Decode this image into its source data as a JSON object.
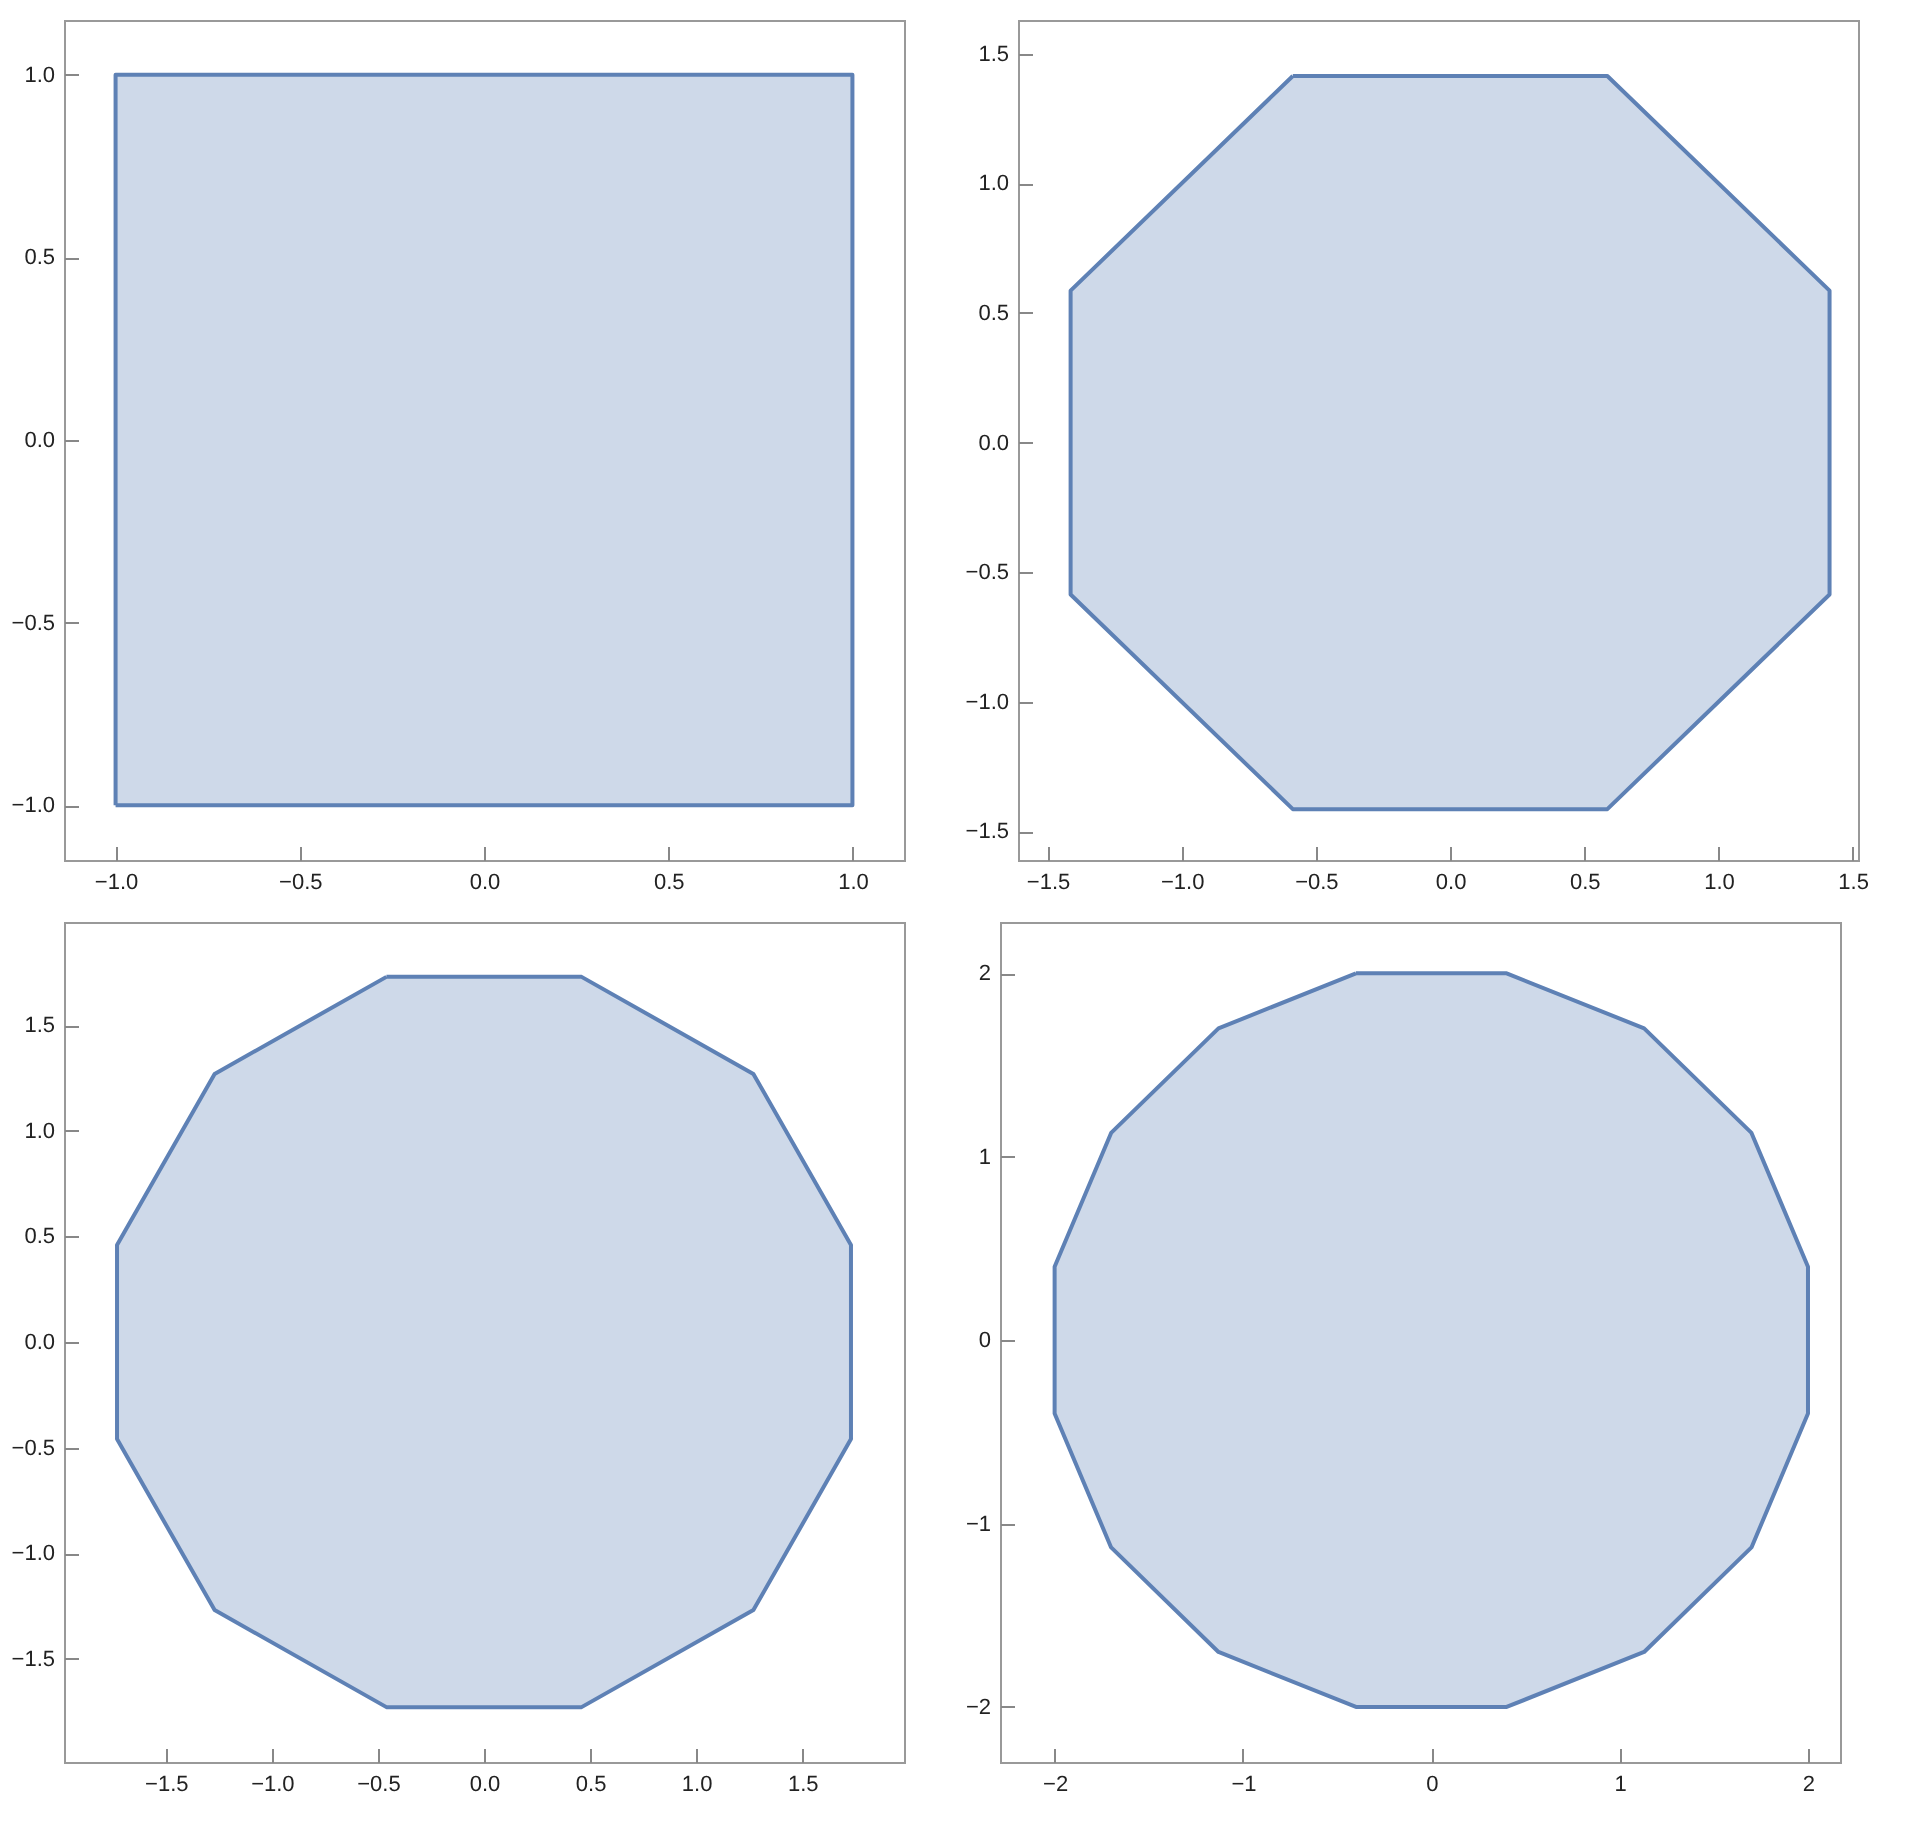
{
  "chart_data": [
    {
      "type": "area",
      "xlim": [
        -1.14,
        1.14
      ],
      "ylim": [
        -1.15,
        1.15
      ],
      "xticks": [
        {
          "value": -1,
          "label": "−1.0"
        },
        {
          "value": -0.5,
          "label": "−0.5"
        },
        {
          "value": 0,
          "label": "0.0"
        },
        {
          "value": 0.5,
          "label": "0.5"
        },
        {
          "value": 1,
          "label": "1.0"
        }
      ],
      "yticks": [
        {
          "value": -1,
          "label": "−1.0"
        },
        {
          "value": -0.5,
          "label": "−0.5"
        },
        {
          "value": 0,
          "label": "0.0"
        },
        {
          "value": 0.5,
          "label": "0.5"
        },
        {
          "value": 1,
          "label": "1.0"
        }
      ],
      "series": [
        {
          "color": "#5e81b5",
          "x": [
            -1,
            1,
            1,
            -1,
            -1
          ],
          "values": [
            -1,
            -1,
            1,
            1,
            -1
          ]
        }
      ]
    },
    {
      "type": "area",
      "xlim": [
        -1.61,
        1.52
      ],
      "ylim": [
        -1.61,
        1.63
      ],
      "xticks": [
        {
          "value": -1.5,
          "label": "−1.5"
        },
        {
          "value": -1,
          "label": "−1.0"
        },
        {
          "value": -0.5,
          "label": "−0.5"
        },
        {
          "value": 0,
          "label": "0.0"
        },
        {
          "value": 0.5,
          "label": "0.5"
        },
        {
          "value": 1,
          "label": "1.0"
        },
        {
          "value": 1.5,
          "label": "1.5"
        }
      ],
      "yticks": [
        {
          "value": -1.5,
          "label": "−1.5"
        },
        {
          "value": -1,
          "label": "−1.0"
        },
        {
          "value": -0.5,
          "label": "−0.5"
        },
        {
          "value": 0,
          "label": "0.0"
        },
        {
          "value": 0.5,
          "label": "0.5"
        },
        {
          "value": 1,
          "label": "1.0"
        },
        {
          "value": 1.5,
          "label": "1.5"
        }
      ],
      "series": [
        {
          "color": "#5e81b5",
          "x": [
            -0.586,
            0.586,
            1.414,
            1.414,
            0.586,
            -0.586,
            -1.414,
            -1.414,
            -0.586
          ],
          "values": [
            1.414,
            1.414,
            0.586,
            -0.586,
            -1.414,
            -1.414,
            -0.586,
            0.586,
            1.414
          ]
        }
      ]
    },
    {
      "type": "area",
      "xlim": [
        -1.98,
        1.98
      ],
      "ylim": [
        -1.99,
        1.99
      ],
      "xticks": [
        {
          "value": -1.5,
          "label": "−1.5"
        },
        {
          "value": -1,
          "label": "−1.0"
        },
        {
          "value": -0.5,
          "label": "−0.5"
        },
        {
          "value": 0,
          "label": "0.0"
        },
        {
          "value": 0.5,
          "label": "0.5"
        },
        {
          "value": 1,
          "label": "1.0"
        },
        {
          "value": 1.5,
          "label": "1.5"
        }
      ],
      "yticks": [
        {
          "value": -1.5,
          "label": "−1.5"
        },
        {
          "value": -1,
          "label": "−1.0"
        },
        {
          "value": -0.5,
          "label": "−0.5"
        },
        {
          "value": 0,
          "label": "0.0"
        },
        {
          "value": 0.5,
          "label": "0.5"
        },
        {
          "value": 1,
          "label": "1.0"
        },
        {
          "value": 1.5,
          "label": "1.5"
        }
      ],
      "series": [
        {
          "color": "#5e81b5",
          "x": [
            -0.46,
            0.46,
            1.27,
            1.73,
            1.73,
            1.27,
            0.46,
            -0.46,
            -1.27,
            -1.73,
            -1.73,
            -1.27,
            -0.46
          ],
          "values": [
            1.73,
            1.73,
            1.27,
            0.46,
            -0.46,
            -1.27,
            -1.73,
            -1.73,
            -1.27,
            -0.46,
            0.46,
            1.27,
            1.73
          ]
        }
      ]
    },
    {
      "type": "area",
      "xlim": [
        -2.29,
        2.17
      ],
      "ylim": [
        -2.3,
        2.28
      ],
      "xticks": [
        {
          "value": -2,
          "label": "−2"
        },
        {
          "value": -1,
          "label": "−1"
        },
        0,
        1,
        2
      ],
      "yticks": [
        {
          "value": -2,
          "label": "−2"
        },
        {
          "value": -1,
          "label": "−1"
        },
        0,
        1,
        2
      ],
      "series": [
        {
          "color": "#5e81b5",
          "x": [
            -0.4,
            0.4,
            1.13,
            1.7,
            2,
            2,
            1.7,
            1.13,
            0.4,
            -0.4,
            -1.13,
            -1.7,
            -2,
            -2,
            -1.7,
            -1.13,
            -0.4
          ],
          "values": [
            2,
            2,
            1.7,
            1.13,
            0.4,
            -0.4,
            -1.13,
            -1.7,
            -2,
            -2,
            -1.7,
            -1.13,
            -0.4,
            0.4,
            1.13,
            1.7,
            2
          ]
        }
      ]
    }
  ]
}
